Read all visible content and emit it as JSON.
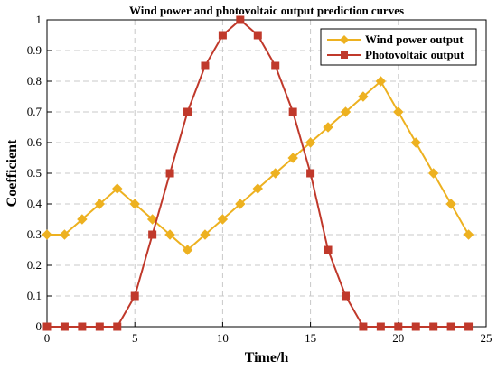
{
  "chart_data": {
    "type": "line",
    "title": "Wind power and photovoltaic output prediction curves",
    "xlabel": "Time/h",
    "ylabel": "Coefficient",
    "xlim": [
      0,
      25
    ],
    "ylim": [
      0,
      1
    ],
    "xticks": [
      "0",
      "5",
      "10",
      "15",
      "20",
      "25"
    ],
    "yticks": [
      "0",
      "0.1",
      "0.2",
      "0.3",
      "0.4",
      "0.5",
      "0.6",
      "0.7",
      "0.8",
      "0.9",
      "1"
    ],
    "grid": true,
    "legend_position": "top-right",
    "x": [
      0,
      1,
      2,
      3,
      4,
      5,
      6,
      7,
      8,
      9,
      10,
      11,
      12,
      13,
      14,
      15,
      16,
      17,
      18,
      19,
      20,
      21,
      22,
      23,
      24
    ],
    "series": [
      {
        "name": "Wind power output",
        "color": "#EDB120",
        "marker": "diamond",
        "values": [
          0.3,
          0.3,
          0.35,
          0.4,
          0.45,
          0.4,
          0.35,
          0.3,
          0.25,
          0.3,
          0.35,
          0.4,
          0.45,
          0.5,
          0.55,
          0.6,
          0.65,
          0.7,
          0.75,
          0.8,
          0.7,
          0.6,
          0.5,
          0.4,
          0.3
        ]
      },
      {
        "name": "Photovoltaic output",
        "color": "#C0392B",
        "marker": "square",
        "values": [
          0,
          0,
          0,
          0,
          0,
          0.1,
          0.3,
          0.5,
          0.7,
          0.85,
          0.95,
          1,
          0.95,
          0.85,
          0.7,
          0.5,
          0.25,
          0.1,
          0,
          0,
          0,
          0,
          0,
          0,
          0
        ]
      }
    ]
  }
}
